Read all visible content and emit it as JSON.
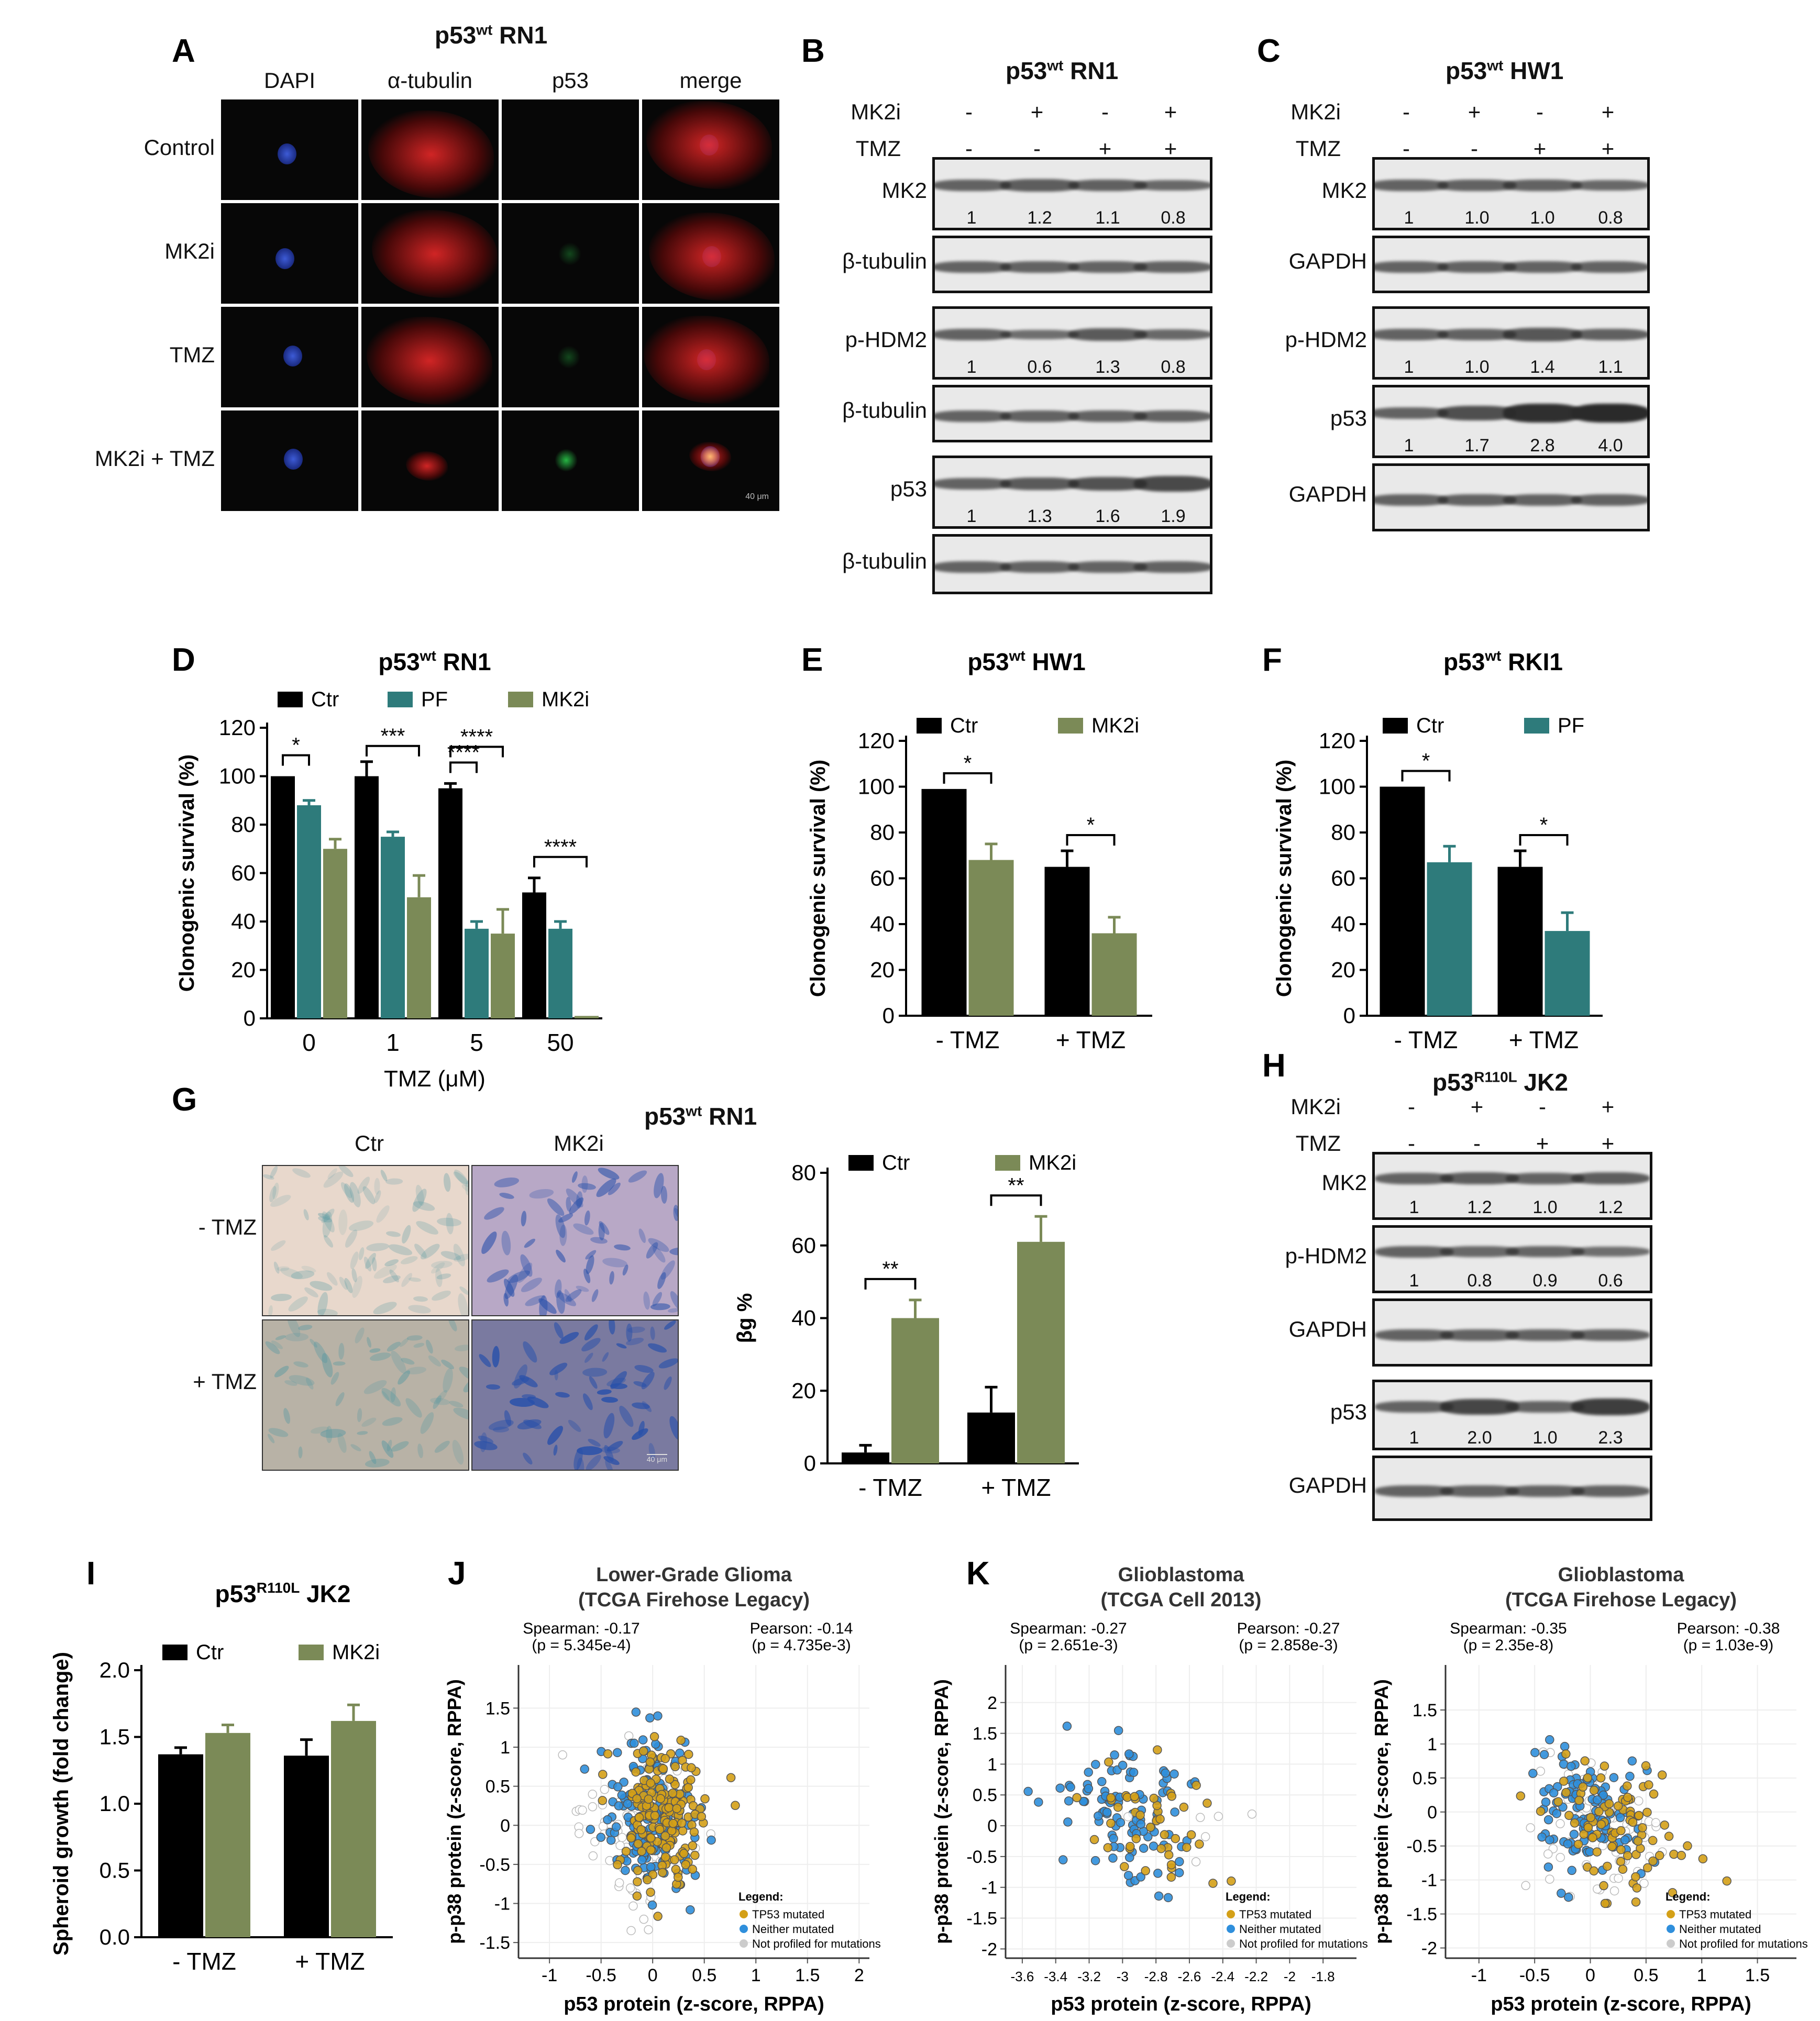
{
  "panels": {
    "A": {
      "label": "A",
      "title_main": "p53",
      "title_sup": "wt",
      "title_rest": " RN1",
      "columns": [
        "DAPI",
        "α-tubulin",
        "p53",
        "merge"
      ],
      "rows": [
        "Control",
        "MK2i",
        "TMZ",
        "MK2i + TMZ"
      ],
      "scale_bar": "40 μm"
    },
    "B": {
      "label": "B",
      "title_main": "p53",
      "title_sup": "wt",
      "title_rest": " RN1",
      "conditions": [
        {
          "name": "MK2i",
          "values": [
            "-",
            "+",
            "-",
            "+"
          ]
        },
        {
          "name": "TMZ",
          "values": [
            "-",
            "-",
            "+",
            "+"
          ]
        }
      ],
      "blots": [
        {
          "name": "MK2",
          "quant": [
            "1",
            "1.2",
            "1.1",
            "0.8"
          ]
        },
        {
          "name": "β-tubulin",
          "quant": []
        },
        {
          "name": "p-HDM2",
          "quant": [
            "1",
            "0.6",
            "1.3",
            "0.8"
          ]
        },
        {
          "name": "β-tubulin",
          "quant": []
        },
        {
          "name": "p53",
          "quant": [
            "1",
            "1.3",
            "1.6",
            "1.9"
          ]
        },
        {
          "name": "β-tubulin",
          "quant": []
        }
      ]
    },
    "C": {
      "label": "C",
      "title_main": "p53",
      "title_sup": "wt",
      "title_rest": " HW1",
      "conditions": [
        {
          "name": "MK2i",
          "values": [
            "-",
            "+",
            "-",
            "+"
          ]
        },
        {
          "name": "TMZ",
          "values": [
            "-",
            "-",
            "+",
            "+"
          ]
        }
      ],
      "blots": [
        {
          "name": "MK2",
          "quant": [
            "1",
            "1.0",
            "1.0",
            "0.8"
          ]
        },
        {
          "name": "GAPDH",
          "quant": []
        },
        {
          "name": "p-HDM2",
          "quant": [
            "1",
            "1.0",
            "1.4",
            "1.1"
          ]
        },
        {
          "name": "p53",
          "quant": [
            "1",
            "1.7",
            "2.8",
            "4.0"
          ]
        },
        {
          "name": "GAPDH",
          "quant": []
        }
      ]
    },
    "H": {
      "label": "H",
      "title_main": "p53",
      "title_sup": "R110L",
      "title_rest": " JK2",
      "conditions": [
        {
          "name": "MK2i",
          "values": [
            "-",
            "+",
            "-",
            "+"
          ]
        },
        {
          "name": "TMZ",
          "values": [
            "-",
            "-",
            "+",
            "+"
          ]
        }
      ],
      "blots": [
        {
          "name": "MK2",
          "quant": [
            "1",
            "1.2",
            "1.0",
            "1.2"
          ]
        },
        {
          "name": "p-HDM2",
          "quant": [
            "1",
            "0.8",
            "0.9",
            "0.6"
          ]
        },
        {
          "name": "GAPDH",
          "quant": []
        },
        {
          "name": "p53",
          "quant": [
            "1",
            "2.0",
            "1.0",
            "2.3"
          ]
        },
        {
          "name": "GAPDH",
          "quant": []
        }
      ]
    },
    "G": {
      "label": "G",
      "title_main": "p53",
      "title_sup": "wt",
      "title_rest": " RN1",
      "image_columns": [
        "Ctr",
        "MK2i"
      ],
      "image_rows": [
        "- TMZ",
        "+ TMZ"
      ],
      "scale_bar": "40 μm"
    }
  },
  "colors": {
    "ctr": "#000000",
    "pf": "#2e7b7b",
    "mk2i": "#7b8a57",
    "tp53": "#d4a017",
    "neither": "#2f8fdc",
    "notprof": "#cccccc"
  },
  "chart_data": [
    {
      "id": "D",
      "type": "bar",
      "label": "D",
      "title_main": "p53",
      "title_sup": "wt",
      "title_rest": " RN1",
      "categories": [
        "0",
        "1",
        "5",
        "50"
      ],
      "xlabel": "TMZ (μM)",
      "ylabel": "Clonogenic survival (%)",
      "ylim": [
        0,
        120
      ],
      "yticks": [
        "0",
        "20",
        "40",
        "60",
        "80",
        "100",
        "120"
      ],
      "series": [
        {
          "name": "Ctr",
          "values": [
            100,
            100,
            95,
            52
          ],
          "errors": [
            0,
            6,
            2,
            6
          ]
        },
        {
          "name": "PF",
          "values": [
            88,
            75,
            37,
            37
          ],
          "errors": [
            2,
            2,
            3,
            3
          ]
        },
        {
          "name": "MK2i",
          "values": [
            70,
            50,
            35,
            1
          ],
          "errors": [
            4,
            9,
            10,
            0
          ]
        }
      ],
      "sig": [
        {
          "text": "*"
        },
        {
          "text": "***"
        },
        {
          "text": "****"
        },
        {
          "text": "****"
        },
        {
          "text": "****"
        }
      ]
    },
    {
      "id": "E",
      "type": "bar",
      "label": "E",
      "title_main": "p53",
      "title_sup": "wt",
      "title_rest": " HW1",
      "categories": [
        "- TMZ",
        "+ TMZ"
      ],
      "ylabel": "Clonogenic survival (%)",
      "ylim": [
        0,
        120
      ],
      "yticks": [
        "0",
        "20",
        "40",
        "60",
        "80",
        "100",
        "120"
      ],
      "series": [
        {
          "name": "Ctr",
          "values": [
            99,
            65
          ],
          "errors": [
            0,
            7
          ]
        },
        {
          "name": "MK2i",
          "values": [
            68,
            36
          ],
          "errors": [
            7,
            7
          ]
        }
      ],
      "sig": [
        {
          "text": "*"
        },
        {
          "text": "*"
        }
      ]
    },
    {
      "id": "F",
      "type": "bar",
      "label": "F",
      "title_main": "p53",
      "title_sup": "wt",
      "title_rest": " RKI1",
      "categories": [
        "- TMZ",
        "+ TMZ"
      ],
      "ylabel": "Clonogenic survival (%)",
      "ylim": [
        0,
        120
      ],
      "yticks": [
        "0",
        "20",
        "40",
        "60",
        "80",
        "100",
        "120"
      ],
      "series": [
        {
          "name": "Ctr",
          "values": [
            100,
            65
          ],
          "errors": [
            0,
            7
          ]
        },
        {
          "name": "PF",
          "values": [
            67,
            37
          ],
          "errors": [
            7,
            8
          ]
        }
      ],
      "sig": [
        {
          "text": "*"
        },
        {
          "text": "*"
        }
      ]
    },
    {
      "id": "G",
      "type": "bar",
      "categories": [
        "- TMZ",
        "+ TMZ"
      ],
      "ylabel": "βg %",
      "ylim": [
        0,
        80
      ],
      "yticks": [
        "0",
        "20",
        "40",
        "60",
        "80"
      ],
      "series": [
        {
          "name": "Ctr",
          "values": [
            3,
            14
          ],
          "errors": [
            2,
            7
          ]
        },
        {
          "name": "MK2i",
          "values": [
            40,
            61
          ],
          "errors": [
            5,
            7
          ]
        }
      ],
      "sig": [
        {
          "text": "**"
        },
        {
          "text": "**"
        }
      ]
    },
    {
      "id": "I",
      "type": "bar",
      "label": "I",
      "title_main": "p53",
      "title_sup": "R110L",
      "title_rest": " JK2",
      "categories": [
        "- TMZ",
        "+ TMZ"
      ],
      "ylabel": "Spheroid growth (fold change)",
      "ylim": [
        0,
        2.0
      ],
      "yticks": [
        "0.0",
        "0.5",
        "1.0",
        "1.5",
        "2.0"
      ],
      "series": [
        {
          "name": "Ctr",
          "values": [
            1.37,
            1.36
          ],
          "errors": [
            0.05,
            0.12
          ]
        },
        {
          "name": "MK2i",
          "values": [
            1.53,
            1.62
          ],
          "errors": [
            0.06,
            0.12
          ]
        }
      ],
      "sig": []
    },
    {
      "id": "J",
      "type": "scatter",
      "label": "J",
      "title": "Lower-Grade Glioma",
      "subtitle": "(TCGA Firehose Legacy)",
      "stats_left": [
        "Spearman: -0.17",
        "(p = 5.345e-4)"
      ],
      "stats_right": [
        "Pearson: -0.14",
        "(p = 4.735e-3)"
      ],
      "xlabel": "p53 protein (z-score, RPPA)",
      "ylabel": "p-p38 protein (z-score, RPPA)",
      "xlim": [
        -1.3,
        2.1
      ],
      "ylim": [
        -1.7,
        1.65
      ],
      "xticks": [
        "-1",
        "-0.5",
        "0",
        "0.5",
        "1",
        "1.5",
        "2"
      ],
      "yticks": [
        "-1.5",
        "-1",
        "-0.5",
        "0",
        "0.5",
        "1",
        "1.5"
      ],
      "legend_title": "Legend:",
      "legend": [
        "TP53 mutated",
        "Neither mutated",
        "Not profiled for mutations"
      ]
    },
    {
      "id": "K1",
      "type": "scatter",
      "label": "K",
      "title": "Glioblastoma",
      "subtitle": "(TCGA Cell 2013)",
      "stats_left": [
        "Spearman: -0.27",
        "(p = 2.651e-3)"
      ],
      "stats_right": [
        "Pearson: -0.27",
        "(p = 2.858e-3)"
      ],
      "xlabel": "p53 protein (z-score, RPPA)",
      "ylabel": "p-p38 protein (z-score, RPPA)",
      "xlim": [
        -3.7,
        -1.6
      ],
      "ylim": [
        -2.15,
        2.1
      ],
      "xticks": [
        "-3.6",
        "-3.4",
        "-3.2",
        "-3",
        "-2.8",
        "-2.6",
        "-2.4",
        "-2.2",
        "-2",
        "-1.8"
      ],
      "yticks": [
        "-2",
        "-1.5",
        "-1",
        "-0.5",
        "0",
        "0.5",
        "1",
        "1.5",
        "2"
      ],
      "legend_title": "Legend:",
      "legend": [
        "TP53 mutated",
        "Neither mutated",
        "Not profiled for mutations"
      ]
    },
    {
      "id": "K2",
      "type": "scatter",
      "title": "Glioblastoma",
      "subtitle": "(TCGA Firehose Legacy)",
      "stats_left": [
        "Spearman: -0.35",
        "(p = 2.35e-8)"
      ],
      "stats_right": [
        "Pearson: -0.38",
        "(p = 1.03e-9)"
      ],
      "xlabel": "p53 protein (z-score, RPPA)",
      "ylabel": "p-p38 protein (z-score, RPPA)",
      "xlim": [
        -1.3,
        1.85
      ],
      "ylim": [
        -2.15,
        1.7
      ],
      "xticks": [
        "-1",
        "-0.5",
        "0",
        "0.5",
        "1",
        "1.5"
      ],
      "yticks": [
        "-2",
        "-1.5",
        "-1",
        "-0.5",
        "0",
        "0.5",
        "1",
        "1.5"
      ],
      "legend_title": "Legend:",
      "legend": [
        "TP53 mutated",
        "Neither mutated",
        "Not profiled for mutations"
      ]
    }
  ]
}
